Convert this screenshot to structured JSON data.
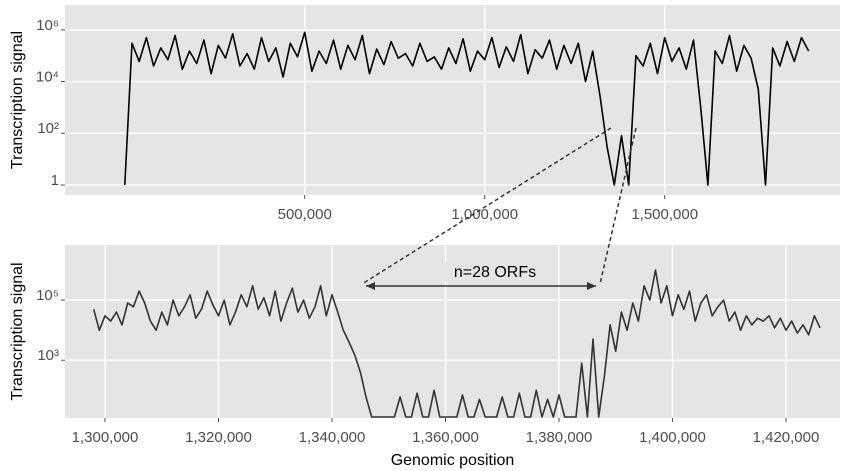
{
  "chart_data": [
    {
      "type": "line",
      "ylabel": "Transcription signal",
      "log_y": true,
      "grid": true,
      "color": "#000000",
      "xlim": [
        -166000,
        1987000
      ],
      "ylim": [
        0.41,
        9100000
      ],
      "xticks": [
        {
          "value": 500000,
          "label": "500,000"
        },
        {
          "value": 1000000,
          "label": "1,000,000"
        },
        {
          "value": 1500000,
          "label": "1,500,000"
        }
      ],
      "yticks": [
        1,
        {
          "value": 100,
          "label": "10²"
        },
        {
          "value": 10000,
          "label": "10⁴"
        },
        {
          "value": 1000000,
          "label": "10⁶"
        }
      ],
      "x": [
        0,
        20000,
        40000,
        60000,
        80000,
        100000,
        120000,
        140000,
        160000,
        180000,
        200000,
        220000,
        240000,
        260000,
        280000,
        300000,
        320000,
        340000,
        360000,
        380000,
        400000,
        420000,
        440000,
        460000,
        480000,
        500000,
        520000,
        540000,
        560000,
        580000,
        600000,
        620000,
        640000,
        660000,
        680000,
        700000,
        720000,
        740000,
        760000,
        780000,
        800000,
        820000,
        840000,
        860000,
        880000,
        900000,
        920000,
        940000,
        960000,
        980000,
        1000000,
        1020000,
        1040000,
        1060000,
        1080000,
        1100000,
        1120000,
        1140000,
        1160000,
        1180000,
        1200000,
        1220000,
        1240000,
        1260000,
        1280000,
        1300000,
        1320000,
        1340000,
        1360000,
        1380000,
        1400000,
        1420000,
        1440000,
        1460000,
        1480000,
        1500000,
        1520000,
        1540000,
        1560000,
        1580000,
        1600000,
        1620000,
        1640000,
        1660000,
        1680000,
        1700000,
        1720000,
        1740000,
        1760000,
        1780000,
        1800000,
        1820000,
        1840000,
        1860000,
        1880000,
        1900000
      ],
      "values": [
        1,
        300000,
        60000,
        500000,
        40000,
        200000,
        70000,
        600000,
        30000,
        150000,
        50000,
        400000,
        20000,
        250000,
        80000,
        700000,
        40000,
        120000,
        30000,
        500000,
        60000,
        200000,
        15000,
        300000,
        90000,
        800000,
        25000,
        150000,
        50000,
        400000,
        30000,
        250000,
        70000,
        600000,
        20000,
        180000,
        45000,
        350000,
        80000,
        120000,
        40000,
        300000,
        60000,
        90000,
        30000,
        200000,
        50000,
        450000,
        25000,
        150000,
        70000,
        500000,
        35000,
        220000,
        60000,
        650000,
        20000,
        170000,
        80000,
        400000,
        30000,
        250000,
        50000,
        300000,
        10000,
        150000,
        3000,
        30,
        1,
        80,
        1,
        100000,
        40000,
        300000,
        20000,
        500000,
        60000,
        200000,
        30000,
        400000,
        1000,
        1,
        150000,
        50000,
        600000,
        25000,
        250000,
        80000,
        5000,
        1,
        200000,
        40000,
        350000,
        60000,
        500000,
        150000
      ]
    },
    {
      "type": "line",
      "xlabel": "Genomic position",
      "ylabel": "Transcription signal",
      "log_y": true,
      "grid": true,
      "color": "#333333",
      "annotations": [
        "n=28 ORFs"
      ],
      "xlim": [
        1292950,
        1429520
      ],
      "ylim": [
        12,
        6800000
      ],
      "xticks": [
        {
          "value": 1300000,
          "label": "1,300,000"
        },
        {
          "value": 1320000,
          "label": "1,320,000"
        },
        {
          "value": 1340000,
          "label": "1,340,000"
        },
        {
          "value": 1360000,
          "label": "1,360,000"
        },
        {
          "value": 1380000,
          "label": "1,380,000"
        },
        {
          "value": 1400000,
          "label": "1,400,000"
        },
        {
          "value": 1420000,
          "label": "1,420,000"
        }
      ],
      "yticks": [
        {
          "value": 1000,
          "label": "10³"
        },
        {
          "value": 100000,
          "label": "10⁵"
        }
      ],
      "x": [
        1298000,
        1299000,
        1300000,
        1301000,
        1302000,
        1303000,
        1304000,
        1305000,
        1306000,
        1307000,
        1308000,
        1309000,
        1310000,
        1311000,
        1312000,
        1313000,
        1314000,
        1315000,
        1316000,
        1317000,
        1318000,
        1319000,
        1320000,
        1321000,
        1322000,
        1323000,
        1324000,
        1325000,
        1326000,
        1327000,
        1328000,
        1329000,
        1330000,
        1331000,
        1332000,
        1333000,
        1334000,
        1335000,
        1336000,
        1337000,
        1338000,
        1339000,
        1340000,
        1341000,
        1342000,
        1343000,
        1344000,
        1345000,
        1346000,
        1347000,
        1348000,
        1349000,
        1350000,
        1351000,
        1352000,
        1353000,
        1354000,
        1355000,
        1356000,
        1357000,
        1358000,
        1359000,
        1360000,
        1361000,
        1362000,
        1363000,
        1364000,
        1365000,
        1366000,
        1367000,
        1368000,
        1369000,
        1370000,
        1371000,
        1372000,
        1373000,
        1374000,
        1375000,
        1376000,
        1377000,
        1378000,
        1379000,
        1380000,
        1381000,
        1382000,
        1383000,
        1384000,
        1385000,
        1386000,
        1387000,
        1388000,
        1389000,
        1390000,
        1391000,
        1392000,
        1393000,
        1394000,
        1395000,
        1396000,
        1397000,
        1398000,
        1399000,
        1400000,
        1401000,
        1402000,
        1403000,
        1404000,
        1405000,
        1406000,
        1407000,
        1408000,
        1409000,
        1410000,
        1411000,
        1412000,
        1413000,
        1414000,
        1415000,
        1416000,
        1417000,
        1418000,
        1419000,
        1420000,
        1421000,
        1422000,
        1423000,
        1424000,
        1425000,
        1426000
      ],
      "values": [
        50000,
        10000,
        30000,
        20000,
        40000,
        15000,
        80000,
        60000,
        200000,
        80000,
        20000,
        10000,
        40000,
        15000,
        100000,
        30000,
        60000,
        150000,
        25000,
        50000,
        200000,
        70000,
        30000,
        100000,
        15000,
        40000,
        150000,
        60000,
        300000,
        50000,
        120000,
        30000,
        200000,
        20000,
        80000,
        250000,
        40000,
        100000,
        25000,
        60000,
        300000,
        30000,
        150000,
        40000,
        10000,
        4000,
        1500,
        400,
        60,
        13,
        13,
        13,
        13,
        13,
        60,
        13,
        13,
        80,
        13,
        13,
        100,
        13,
        13,
        13,
        13,
        70,
        13,
        13,
        50,
        13,
        13,
        13,
        60,
        13,
        13,
        80,
        13,
        13,
        100,
        13,
        50,
        13,
        70,
        13,
        13,
        13,
        800,
        13,
        5000,
        13,
        300,
        15000,
        2000,
        40000,
        10000,
        80000,
        20000,
        300000,
        100000,
        1000000,
        80000,
        300000,
        30000,
        150000,
        50000,
        200000,
        20000,
        80000,
        150000,
        30000,
        60000,
        100000,
        20000,
        40000,
        10000,
        30000,
        15000,
        25000,
        20000,
        30000,
        12000,
        25000,
        10000,
        20000,
        8000,
        15000,
        7000,
        30000,
        12000
      ]
    }
  ]
}
